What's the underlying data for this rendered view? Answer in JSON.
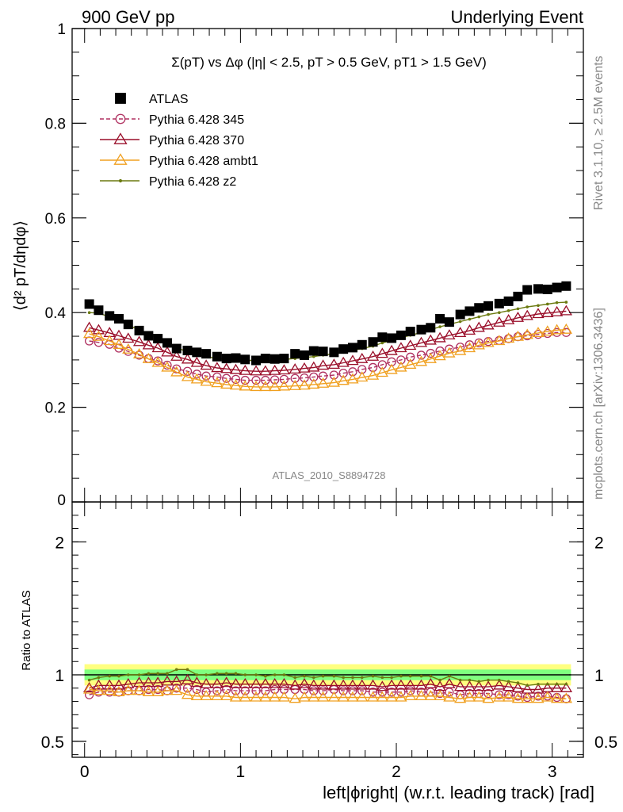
{
  "header": {
    "left": "900 GeV pp",
    "right": "Underlying Event"
  },
  "side": {
    "rivet": "Rivet 3.1.10, ≥ 2.5M events",
    "mcplots": "mcplots.cern.ch [arXiv:1306.3436]"
  },
  "watermark": "ATLAS_2010_S8894728",
  "colors": {
    "atlas": "#000000",
    "p345": "#b03060",
    "p370": "#9a0f2a",
    "ambt1": "#f0a020",
    "z2": "#6b7a10",
    "band_inner": "#7fff7f",
    "band_outer": "#ffff80"
  },
  "chart_data": [
    {
      "type": "scatter",
      "panel": "main",
      "title": "Σ(pT) vs Δφ (|η| < 2.5, pT > 0.5 GeV, pT1 > 1.5 GeV)",
      "ylabel": "⟨d² pT/dηdφ⟩",
      "ylim": [
        0,
        1
      ],
      "yticks": [
        "0",
        "0.2",
        "0.4",
        "0.6",
        "0.8",
        "1"
      ],
      "legend_position": "top-left",
      "x": [
        0.03,
        0.09,
        0.16,
        0.22,
        0.28,
        0.35,
        0.41,
        0.47,
        0.53,
        0.59,
        0.66,
        0.72,
        0.78,
        0.85,
        0.91,
        0.97,
        1.03,
        1.1,
        1.16,
        1.22,
        1.28,
        1.35,
        1.41,
        1.47,
        1.53,
        1.6,
        1.66,
        1.72,
        1.78,
        1.85,
        1.91,
        1.97,
        2.03,
        2.09,
        2.16,
        2.22,
        2.28,
        2.34,
        2.41,
        2.47,
        2.53,
        2.59,
        2.66,
        2.72,
        2.78,
        2.84,
        2.91,
        2.97,
        3.03,
        3.09
      ],
      "series": [
        {
          "name": "ATLAS",
          "marker": "square",
          "values": [
            0.418,
            0.405,
            0.393,
            0.387,
            0.375,
            0.362,
            0.351,
            0.345,
            0.336,
            0.324,
            0.32,
            0.316,
            0.313,
            0.307,
            0.303,
            0.304,
            0.301,
            0.299,
            0.303,
            0.302,
            0.303,
            0.313,
            0.31,
            0.319,
            0.318,
            0.316,
            0.323,
            0.326,
            0.332,
            0.338,
            0.348,
            0.346,
            0.352,
            0.36,
            0.364,
            0.368,
            0.387,
            0.38,
            0.396,
            0.403,
            0.41,
            0.414,
            0.419,
            0.424,
            0.434,
            0.448,
            0.45,
            0.449,
            0.453,
            0.456
          ]
        },
        {
          "name": "Pythia 6.428 345",
          "marker": "circle",
          "values": [
            0.34,
            0.337,
            0.333,
            0.325,
            0.318,
            0.31,
            0.303,
            0.298,
            0.289,
            0.281,
            0.276,
            0.27,
            0.266,
            0.264,
            0.261,
            0.259,
            0.257,
            0.257,
            0.257,
            0.258,
            0.259,
            0.261,
            0.262,
            0.264,
            0.266,
            0.268,
            0.272,
            0.275,
            0.28,
            0.284,
            0.29,
            0.296,
            0.3,
            0.306,
            0.31,
            0.314,
            0.319,
            0.323,
            0.327,
            0.332,
            0.336,
            0.339,
            0.341,
            0.345,
            0.349,
            0.351,
            0.354,
            0.356,
            0.358,
            0.358
          ]
        },
        {
          "name": "Pythia 6.428 370",
          "marker": "triangle",
          "values": [
            0.368,
            0.363,
            0.357,
            0.351,
            0.345,
            0.338,
            0.331,
            0.325,
            0.316,
            0.307,
            0.301,
            0.294,
            0.288,
            0.283,
            0.281,
            0.279,
            0.277,
            0.276,
            0.276,
            0.277,
            0.278,
            0.28,
            0.282,
            0.284,
            0.288,
            0.29,
            0.294,
            0.298,
            0.302,
            0.307,
            0.313,
            0.319,
            0.325,
            0.33,
            0.336,
            0.341,
            0.346,
            0.352,
            0.357,
            0.362,
            0.368,
            0.373,
            0.379,
            0.384,
            0.389,
            0.393,
            0.397,
            0.399,
            0.401,
            0.403
          ]
        },
        {
          "name": "Pythia 6.428 ambt1",
          "marker": "triangle",
          "values": [
            0.355,
            0.349,
            0.34,
            0.332,
            0.322,
            0.312,
            0.302,
            0.294,
            0.284,
            0.274,
            0.264,
            0.259,
            0.254,
            0.251,
            0.248,
            0.246,
            0.244,
            0.243,
            0.243,
            0.243,
            0.244,
            0.245,
            0.246,
            0.248,
            0.25,
            0.252,
            0.256,
            0.259,
            0.263,
            0.267,
            0.273,
            0.279,
            0.284,
            0.29,
            0.296,
            0.302,
            0.308,
            0.314,
            0.319,
            0.325,
            0.331,
            0.336,
            0.34,
            0.345,
            0.349,
            0.353,
            0.357,
            0.36,
            0.363,
            0.364
          ]
        },
        {
          "name": "Pythia 6.428 z2",
          "marker": "dot",
          "values": [
            0.4,
            0.399,
            0.391,
            0.383,
            0.373,
            0.364,
            0.355,
            0.346,
            0.337,
            0.326,
            0.317,
            0.312,
            0.307,
            0.303,
            0.301,
            0.3,
            0.299,
            0.299,
            0.299,
            0.3,
            0.301,
            0.303,
            0.305,
            0.307,
            0.31,
            0.313,
            0.316,
            0.32,
            0.324,
            0.329,
            0.336,
            0.341,
            0.347,
            0.352,
            0.358,
            0.364,
            0.37,
            0.375,
            0.381,
            0.386,
            0.391,
            0.396,
            0.4,
            0.404,
            0.408,
            0.412,
            0.415,
            0.418,
            0.421,
            0.422
          ]
        }
      ]
    },
    {
      "type": "scatter",
      "panel": "ratio",
      "ylabel": "Ratio to ATLAS",
      "ylim": [
        0.38,
        2.3
      ],
      "yticks": [
        "0.5",
        "1",
        "2"
      ],
      "xlabel": "left|ϕright| (w.r.t. leading track) [rad]",
      "xlim": [
        -0.08,
        3.2
      ],
      "xticks": [
        "0",
        "1",
        "2",
        "3"
      ],
      "atlas_band": {
        "inner": 0.04,
        "outer": 0.08
      },
      "series": [
        {
          "name": "Pythia 6.428 345",
          "values": [
            0.85,
            0.87,
            0.87,
            0.87,
            0.88,
            0.88,
            0.89,
            0.89,
            0.88,
            0.9,
            0.9,
            0.89,
            0.87,
            0.88,
            0.89,
            0.88,
            0.88,
            0.88,
            0.88,
            0.89,
            0.89,
            0.89,
            0.89,
            0.88,
            0.88,
            0.89,
            0.88,
            0.88,
            0.88,
            0.87,
            0.87,
            0.87,
            0.87,
            0.88,
            0.87,
            0.87,
            0.86,
            0.87,
            0.85,
            0.86,
            0.86,
            0.86,
            0.85,
            0.85,
            0.84,
            0.83,
            0.84,
            0.84,
            0.83,
            0.82
          ]
        },
        {
          "name": "Pythia 6.428 370",
          "values": [
            0.9,
            0.92,
            0.92,
            0.92,
            0.93,
            0.94,
            0.94,
            0.94,
            0.95,
            0.95,
            0.96,
            0.94,
            0.93,
            0.93,
            0.94,
            0.93,
            0.93,
            0.93,
            0.93,
            0.93,
            0.93,
            0.92,
            0.93,
            0.92,
            0.92,
            0.92,
            0.92,
            0.92,
            0.92,
            0.92,
            0.91,
            0.92,
            0.92,
            0.92,
            0.92,
            0.93,
            0.91,
            0.93,
            0.91,
            0.91,
            0.91,
            0.91,
            0.92,
            0.91,
            0.9,
            0.89,
            0.89,
            0.9,
            0.9,
            0.9
          ]
        },
        {
          "name": "Pythia 6.428 ambt1",
          "values": [
            0.89,
            0.88,
            0.88,
            0.87,
            0.88,
            0.88,
            0.87,
            0.87,
            0.88,
            0.88,
            0.85,
            0.84,
            0.84,
            0.84,
            0.84,
            0.83,
            0.83,
            0.83,
            0.83,
            0.83,
            0.83,
            0.82,
            0.83,
            0.83,
            0.83,
            0.83,
            0.83,
            0.83,
            0.83,
            0.83,
            0.83,
            0.83,
            0.83,
            0.84,
            0.84,
            0.84,
            0.84,
            0.83,
            0.82,
            0.83,
            0.83,
            0.82,
            0.83,
            0.83,
            0.82,
            0.82,
            0.82,
            0.83,
            0.82,
            0.82
          ]
        },
        {
          "name": "Pythia 6.428 z2",
          "values": [
            0.96,
            0.98,
            0.99,
            0.99,
            1.0,
            1.0,
            1.01,
            1.01,
            1.01,
            1.04,
            1.04,
            1.0,
            1.0,
            1.01,
            1.01,
            1.01,
            1.0,
            1.0,
            0.99,
            1.0,
            1.0,
            0.98,
            0.99,
            0.98,
            0.99,
            0.99,
            0.98,
            0.98,
            0.98,
            0.99,
            0.98,
            0.98,
            0.99,
            0.99,
            0.99,
            0.99,
            0.96,
            0.99,
            0.96,
            0.96,
            0.95,
            0.96,
            0.96,
            0.95,
            0.94,
            0.92,
            0.93,
            0.93,
            0.93,
            0.93
          ]
        }
      ]
    }
  ]
}
